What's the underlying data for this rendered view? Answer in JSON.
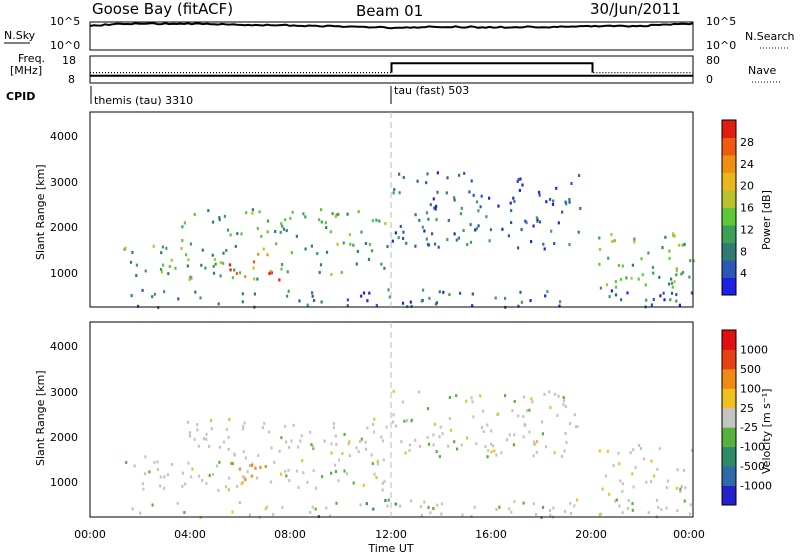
{
  "header": {
    "radar": "Goose Bay (fitACF)",
    "beam": "Beam 01",
    "date": "30/Jun/2011"
  },
  "summary": {
    "nsky_label": "N.Sky",
    "nsearch_label": "N.Search",
    "freq_label_1": "Freq.",
    "freq_label_2": "[MHz]",
    "nave_label": "Nave",
    "cpid_label": "CPID",
    "noise_ticks": [
      "10^5",
      "10^0"
    ],
    "freq_ticks": [
      "18",
      "8"
    ],
    "nave_ticks": [
      "80",
      "0"
    ],
    "cpid_segments": [
      {
        "label": "themis (tau) 3310",
        "start_hour": 0,
        "end_hour": 12
      },
      {
        "label": "tau (fast) 503",
        "start_hour": 12,
        "end_hour": 24
      }
    ]
  },
  "axes": {
    "ylabel": "Slant Range [km]",
    "xlabel": "Time UT",
    "yticks": [
      "1000",
      "2000",
      "3000",
      "4000"
    ],
    "xticks": [
      "00:00",
      "04:00",
      "08:00",
      "12:00",
      "16:00",
      "20:00",
      "00:00"
    ]
  },
  "colorbars": {
    "power": {
      "label": "Power [dB]",
      "ticks": [
        "4",
        "8",
        "12",
        "16",
        "20",
        "24",
        "28"
      ],
      "colors": [
        "#1f1fe6",
        "#2b58b6",
        "#2f7c74",
        "#3ca058",
        "#5ec83a",
        "#b7c22c",
        "#e8b818",
        "#f09010",
        "#ef5a10",
        "#e01e10"
      ]
    },
    "velocity": {
      "label": "Velocity [m s⁻¹]",
      "ticks": [
        "1000",
        "500",
        "100",
        "25",
        "-25",
        "-100",
        "-500",
        "-1000"
      ],
      "colors": [
        "#2222cc",
        "#2f6aa8",
        "#2f8a66",
        "#56b23c",
        "#c4c4c0",
        "#f0c020",
        "#f08a10",
        "#e84010",
        "#e01010"
      ]
    }
  },
  "chart_data": [
    {
      "type": "line",
      "panel": "N.Sky / N.Search",
      "x": [
        0,
        2,
        4,
        6,
        8,
        10,
        12,
        14,
        16,
        18,
        20,
        22,
        24
      ],
      "y": [
        100000,
        300000,
        250000,
        180000,
        120000,
        80000,
        40000,
        60000,
        50000,
        60000,
        70000,
        100000,
        250000
      ]
    },
    {
      "type": "line",
      "panel": "Freq. / Nave",
      "series": [
        {
          "name": "Freq.",
          "x": [
            0,
            24
          ],
          "y": [
            10.5,
            10.5
          ]
        },
        {
          "name": "Nave",
          "x": [
            0,
            12,
            12,
            20,
            20,
            24
          ],
          "y": [
            30,
            30,
            60,
            60,
            30,
            30
          ]
        }
      ]
    },
    {
      "type": "heatmap",
      "panel": "Power",
      "xlim": [
        0,
        24
      ],
      "ylim": [
        180,
        4500
      ],
      "regions": [
        {
          "t": [
            1.3,
            11.8
          ],
          "r": [
            800,
            1600
          ],
          "level": 12
        },
        {
          "t": [
            3.5,
            11.8
          ],
          "r": [
            1600,
            2400
          ],
          "level": 12
        },
        {
          "t": [
            5.5,
            7.5
          ],
          "r": [
            800,
            1400
          ],
          "level": 26
        },
        {
          "t": [
            12,
            19.5
          ],
          "r": [
            1500,
            3200
          ],
          "level": 6
        },
        {
          "t": [
            20.2,
            24
          ],
          "r": [
            600,
            1900
          ],
          "level": 12
        },
        {
          "t": [
            1.5,
            24
          ],
          "r": [
            200,
            600
          ],
          "level": 6
        }
      ]
    },
    {
      "type": "heatmap",
      "panel": "Velocity",
      "xlim": [
        0,
        24
      ],
      "ylim": [
        180,
        4500
      ],
      "regions": [
        {
          "t": [
            1.3,
            11.8
          ],
          "r": [
            800,
            1600
          ],
          "v": 0
        },
        {
          "t": [
            3.5,
            11.8
          ],
          "r": [
            1600,
            2400
          ],
          "v": 0
        },
        {
          "t": [
            5.5,
            7.0
          ],
          "r": [
            1000,
            1500
          ],
          "v": -300
        },
        {
          "t": [
            12,
            19.5
          ],
          "r": [
            1500,
            3000
          ],
          "v": 0
        },
        {
          "t": [
            20.2,
            24
          ],
          "r": [
            700,
            1800
          ],
          "v": 0
        },
        {
          "t": [
            1.5,
            24
          ],
          "r": [
            200,
            600
          ],
          "v": 50
        }
      ]
    }
  ]
}
